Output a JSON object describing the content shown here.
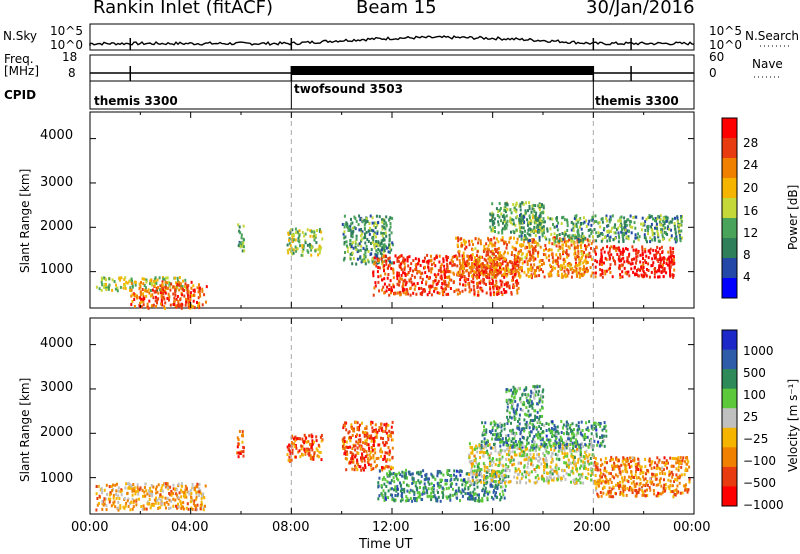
{
  "header": {
    "station": "Rankin Inlet (fitACF)",
    "beam": "Beam 15",
    "date": "30/Jan/2016"
  },
  "panels": {
    "nsky": {
      "label": "N.Sky",
      "ticks": [
        "10^5",
        "10^0"
      ]
    },
    "nsearch": {
      "label": "N.Search",
      "ticks": [
        "10^5",
        "10^0"
      ]
    },
    "freq": {
      "label": "Freq.\n[MHz]",
      "ticks": [
        "18",
        "8"
      ]
    },
    "nave": {
      "label": "Nave",
      "ticks": [
        "60",
        "0"
      ]
    },
    "cpid": {
      "label": "CPID",
      "segments": [
        {
          "name": "themis 3300",
          "start_hr": 0,
          "end_hr": 8
        },
        {
          "name": "twofsound 3503",
          "start_hr": 8,
          "end_hr": 20
        },
        {
          "name": "themis 3300",
          "start_hr": 20,
          "end_hr": 24
        }
      ]
    }
  },
  "chart_data": [
    {
      "type": "heatmap",
      "title": "",
      "xlabel": "Time UT",
      "ylabel": "Slant Range [km]",
      "xlim": [
        0,
        24
      ],
      "ylim": [
        180,
        4600
      ],
      "xticks": [
        "00:00",
        "04:00",
        "08:00",
        "12:00",
        "16:00",
        "20:00",
        "00:00"
      ],
      "yticks": [
        "1000",
        "2000",
        "3000",
        "4000"
      ],
      "colorbar": {
        "label": "Power [dB]",
        "ticks": [
          "4",
          "8",
          "12",
          "16",
          "20",
          "24",
          "28"
        ],
        "colors": [
          "#0000ff",
          "#2448a8",
          "#2f7f5a",
          "#4aa35a",
          "#c4d83a",
          "#f5b400",
          "#f08000",
          "#e83c10",
          "#ff0000"
        ]
      },
      "scatter_regions": [
        {
          "t": [
            0.2,
            3.8
          ],
          "r": [
            600,
            900
          ],
          "level": 0.5
        },
        {
          "t": [
            1.6,
            4.6
          ],
          "r": [
            200,
            800
          ],
          "level": 0.78
        },
        {
          "t": [
            5.8,
            6.1
          ],
          "r": [
            1500,
            2100
          ],
          "level": 0.35
        },
        {
          "t": [
            7.8,
            9.2
          ],
          "r": [
            1400,
            2000
          ],
          "level": 0.45
        },
        {
          "t": [
            10.0,
            12.0
          ],
          "r": [
            1200,
            2300
          ],
          "level": 0.35
        },
        {
          "t": [
            11.2,
            17.0
          ],
          "r": [
            500,
            1400
          ],
          "level": 0.85
        },
        {
          "t": [
            14.5,
            20.0
          ],
          "r": [
            900,
            1800
          ],
          "level": 0.72
        },
        {
          "t": [
            15.8,
            18.0
          ],
          "r": [
            1900,
            2600
          ],
          "level": 0.4
        },
        {
          "t": [
            20.0,
            23.2
          ],
          "r": [
            900,
            1600
          ],
          "level": 0.92
        },
        {
          "t": [
            17.0,
            23.5
          ],
          "r": [
            1700,
            2300
          ],
          "level": 0.35
        }
      ]
    },
    {
      "type": "heatmap",
      "title": "",
      "xlabel": "Time UT",
      "ylabel": "Slant Range [km]",
      "xlim": [
        0,
        24
      ],
      "ylim": [
        180,
        4600
      ],
      "xticks": [
        "00:00",
        "04:00",
        "08:00",
        "12:00",
        "16:00",
        "20:00",
        "00:00"
      ],
      "yticks": [
        "1000",
        "2000",
        "3000",
        "4000"
      ],
      "colorbar": {
        "label": "Velocity [m s⁻¹]",
        "ticks": [
          "1000",
          "500",
          "100",
          "25",
          "−25",
          "−100",
          "−500",
          "−1000"
        ],
        "colors": [
          "#1c28c8",
          "#2f5ca8",
          "#2f8a5a",
          "#5cc83a",
          "#c0c0c0",
          "#f5b400",
          "#f08000",
          "#e83c10",
          "#ff0000"
        ]
      },
      "scatter_regions": [
        {
          "t": [
            0.2,
            4.6
          ],
          "r": [
            300,
            900
          ],
          "level": 0.35
        },
        {
          "t": [
            5.8,
            6.1
          ],
          "r": [
            1500,
            2100
          ],
          "level": 0.2
        },
        {
          "t": [
            7.8,
            9.2
          ],
          "r": [
            1400,
            2000
          ],
          "level": 0.2
        },
        {
          "t": [
            10.0,
            12.0
          ],
          "r": [
            1200,
            2300
          ],
          "level": 0.2
        },
        {
          "t": [
            11.4,
            16.5
          ],
          "r": [
            500,
            1200
          ],
          "level": 0.72
        },
        {
          "t": [
            15.0,
            20.0
          ],
          "r": [
            900,
            1800
          ],
          "level": 0.5
        },
        {
          "t": [
            15.5,
            20.5
          ],
          "r": [
            1700,
            2300
          ],
          "level": 0.72
        },
        {
          "t": [
            20.0,
            23.8
          ],
          "r": [
            600,
            1500
          ],
          "level": 0.28
        },
        {
          "t": [
            16.5,
            18.0
          ],
          "r": [
            2300,
            3100
          ],
          "level": 0.7
        }
      ]
    }
  ]
}
